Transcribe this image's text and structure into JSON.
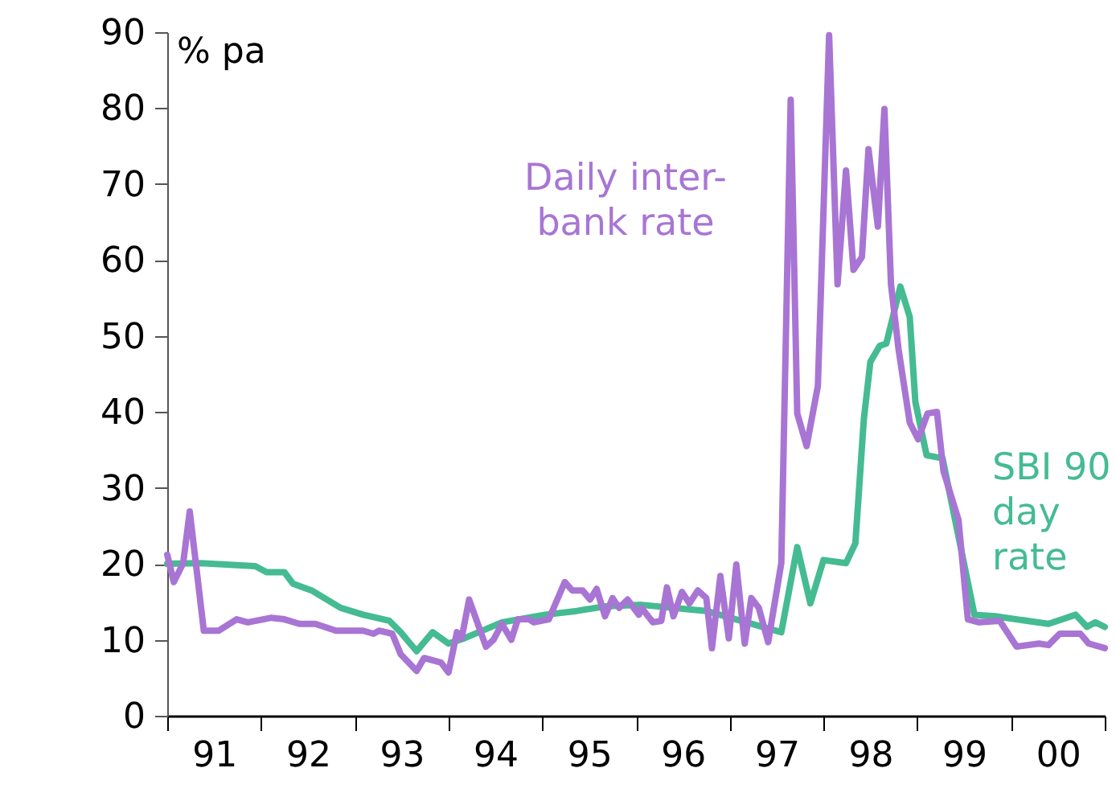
{
  "chart_data": {
    "type": "line",
    "ylabel": "% pa",
    "xlim": [
      1990.5,
      2000.5
    ],
    "ylim": [
      0,
      90
    ],
    "yticks": [
      0,
      10,
      20,
      30,
      40,
      50,
      60,
      70,
      80,
      90
    ],
    "xticks": [
      {
        "value": 1990.5,
        "label": null
      },
      {
        "value": 1991.5,
        "label": null
      },
      {
        "value": 1992.5,
        "label": null
      },
      {
        "value": 1993.5,
        "label": null
      },
      {
        "value": 1994.5,
        "label": null
      },
      {
        "value": 1995.5,
        "label": null
      },
      {
        "value": 1996.5,
        "label": null
      },
      {
        "value": 1997.5,
        "label": null
      },
      {
        "value": 1998.5,
        "label": null
      },
      {
        "value": 1999.5,
        "label": null
      },
      {
        "value": 2000.5,
        "label": null
      },
      {
        "value": 1991,
        "label": "91"
      },
      {
        "value": 1992,
        "label": "92"
      },
      {
        "value": 1993,
        "label": "93"
      },
      {
        "value": 1994,
        "label": "94"
      },
      {
        "value": 1995,
        "label": "95"
      },
      {
        "value": 1996,
        "label": "96"
      },
      {
        "value": 1997,
        "label": "97"
      },
      {
        "value": 1998,
        "label": "98"
      },
      {
        "value": 1999,
        "label": "99"
      },
      {
        "value": 2000,
        "label": "00"
      }
    ],
    "grid": false,
    "marker": "none",
    "line_style": "solid",
    "series": [
      {
        "name": "SBI 90 day rate",
        "color": "#45bb92",
        "x": [
          1990.5,
          1990.84,
          1991.44,
          1991.56,
          1991.75,
          1991.84,
          1992.04,
          1992.35,
          1992.59,
          1992.87,
          1992.99,
          1993.16,
          1993.33,
          1993.5,
          1993.67,
          1994.07,
          1994.53,
          1994.87,
          1995.17,
          1995.56,
          1996.25,
          1997.05,
          1997.22,
          1997.36,
          1997.5,
          1997.74,
          1997.84,
          1997.93,
          1998.0,
          1998.1,
          1998.17,
          1998.32,
          1998.42,
          1998.48,
          1998.6,
          1998.77,
          1999.11,
          1999.33,
          1999.9,
          2000.19,
          2000.31,
          2000.4,
          2000.5
        ],
        "values": [
          20,
          20.1,
          19.7,
          18.9,
          18.9,
          17.4,
          16.5,
          14.2,
          13.3,
          12.5,
          11,
          8.5,
          11,
          9.5,
          10.2,
          12.3,
          13.3,
          13.8,
          14.4,
          14.6,
          13.8,
          11,
          22.2,
          14.8,
          20.5,
          20.1,
          22.7,
          39,
          46.6,
          48.7,
          49,
          56.5,
          52.5,
          41.3,
          34.3,
          33.9,
          13.3,
          13.1,
          12.1,
          13.3,
          11.7,
          12.3,
          11.7
        ]
      },
      {
        "name": "Daily inter-bank rate",
        "color": "#a875d4",
        "x": [
          1990.5,
          1990.57,
          1990.67,
          1990.74,
          1990.89,
          1991.05,
          1991.24,
          1991.36,
          1991.61,
          1991.75,
          1991.91,
          1992.08,
          1992.3,
          1992.59,
          1992.7,
          1992.76,
          1992.9,
          1992.99,
          1993.16,
          1993.24,
          1993.42,
          1993.5,
          1993.59,
          1993.64,
          1993.72,
          1993.9,
          1993.98,
          1994.07,
          1994.17,
          1994.24,
          1994.36,
          1994.41,
          1994.57,
          1994.74,
          1994.82,
          1994.93,
          1995.01,
          1995.08,
          1995.17,
          1995.25,
          1995.32,
          1995.41,
          1995.53,
          1995.56,
          1995.68,
          1995.77,
          1995.83,
          1995.9,
          1995.99,
          1996.07,
          1996.16,
          1996.25,
          1996.31,
          1996.4,
          1996.49,
          1996.57,
          1996.66,
          1996.73,
          1996.81,
          1996.91,
          1997.05,
          1997.15,
          1997.22,
          1997.32,
          1997.44,
          1997.56,
          1997.65,
          1997.74,
          1997.82,
          1997.91,
          1997.98,
          1998.08,
          1998.15,
          1998.22,
          1998.3,
          1998.42,
          1998.51,
          1998.61,
          1998.71,
          1998.78,
          1998.94,
          1999.04,
          1999.16,
          1999.38,
          1999.56,
          1999.8,
          1999.9,
          2000.02,
          2000.24,
          2000.33,
          2000.5
        ],
        "values": [
          21.2,
          17.6,
          20.1,
          26.9,
          11.2,
          11.2,
          12.7,
          12.3,
          12.9,
          12.7,
          12.1,
          12.1,
          11.2,
          11.2,
          10.8,
          11.2,
          10.8,
          8.1,
          5.9,
          7.6,
          7.0,
          5.7,
          11.0,
          10.2,
          15.3,
          9.1,
          10.0,
          12.1,
          10.0,
          12.7,
          12.7,
          12.3,
          12.7,
          17.6,
          16.5,
          16.5,
          15.3,
          16.7,
          13.1,
          15.5,
          14.2,
          15.3,
          13.3,
          14.2,
          12.3,
          12.5,
          16.9,
          13.1,
          16.3,
          14.8,
          16.5,
          15.5,
          8.9,
          18.4,
          10.2,
          19.9,
          9.5,
          15.5,
          14.2,
          9.7,
          20.1,
          81.1,
          39.8,
          35.5,
          43.4,
          89.6,
          56.8,
          71.8,
          58.7,
          60.4,
          74.6,
          64.4,
          79.9,
          56.8,
          48.3,
          38.6,
          36.4,
          39.8,
          40.0,
          32.2,
          25.8,
          12.7,
          12.3,
          12.5,
          9.1,
          9.5,
          9.3,
          10.8,
          10.8,
          9.5,
          8.9
        ]
      }
    ]
  }
}
